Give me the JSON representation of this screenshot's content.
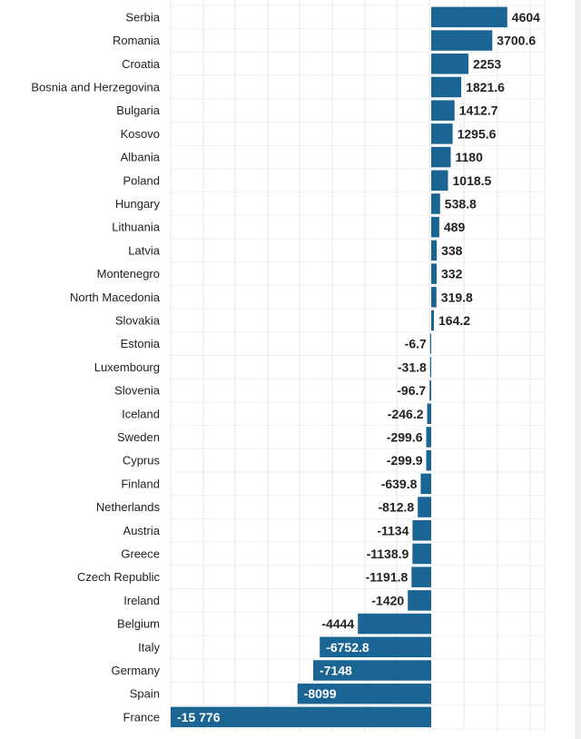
{
  "chart_data": {
    "type": "bar",
    "orientation": "horizontal",
    "title": "",
    "xlabel": "",
    "ylabel": "",
    "xlim": [
      -16000,
      4604
    ],
    "grid": true,
    "legend": "none",
    "bar_color": "#1b6594",
    "categories": [
      "Serbia",
      "Romania",
      "Croatia",
      "Bosnia and Herzegovina",
      "Bulgaria",
      "Kosovo",
      "Albania",
      "Poland",
      "Hungary",
      "Lithuania",
      "Latvia",
      "Montenegro",
      "North Macedonia",
      "Slovakia",
      "Estonia",
      "Luxembourg",
      "Slovenia",
      "Iceland",
      "Sweden",
      "Cyprus",
      "Finland",
      "Netherlands",
      "Austria",
      "Greece",
      "Czech Republic",
      "Ireland",
      "Belgium",
      "Italy",
      "Germany",
      "Spain",
      "France"
    ],
    "values": [
      4604,
      3700.6,
      2253,
      1821.6,
      1412.7,
      1295.6,
      1180,
      1018.5,
      538.8,
      489,
      338,
      332,
      319.8,
      164.2,
      -6.7,
      -31.8,
      -96.7,
      -246.2,
      -299.6,
      -299.9,
      -639.8,
      -812.8,
      -1134,
      -1138.9,
      -1191.8,
      -1420,
      -4444,
      -6752.8,
      -7148,
      -8099,
      -15776
    ],
    "value_labels": [
      "4604",
      "3700.6",
      "2253",
      "1821.6",
      "1412.7",
      "1295.6",
      "1180",
      "1018.5",
      "538.8",
      "489",
      "338",
      "332",
      "319.8",
      "164.2",
      "-6.7",
      "-31.8",
      "-96.7",
      "-246.2",
      "-299.6",
      "-299.9",
      "-639.8",
      "-812.8",
      "-1134",
      "-1138.9",
      "-1191.8",
      "-1420",
      "-4444",
      "-6752.8",
      "-7148",
      "-8099",
      "-15 776"
    ]
  }
}
